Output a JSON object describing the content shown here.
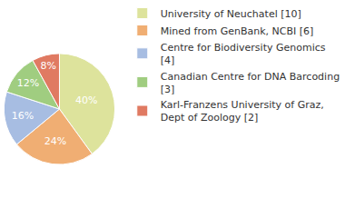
{
  "chart_data": {
    "type": "pie",
    "categories": [
      "University of Neuchatel [10]",
      "Mined from GenBank, NCBI [6]",
      "Centre for Biodiversity Genomics [4]",
      "Canadian Centre for DNA Barcoding [3]",
      "Karl-Franzens University of Graz, Dept of Zoology [2]"
    ],
    "values": [
      40,
      24,
      16,
      12,
      8
    ],
    "value_labels": [
      "40%",
      "24%",
      "16%",
      "12%",
      "8%"
    ],
    "colors": [
      "#dde39c",
      "#f0ae73",
      "#a7bde2",
      "#a0cd80",
      "#e07a62"
    ],
    "data_labels": true,
    "legend": "right"
  }
}
